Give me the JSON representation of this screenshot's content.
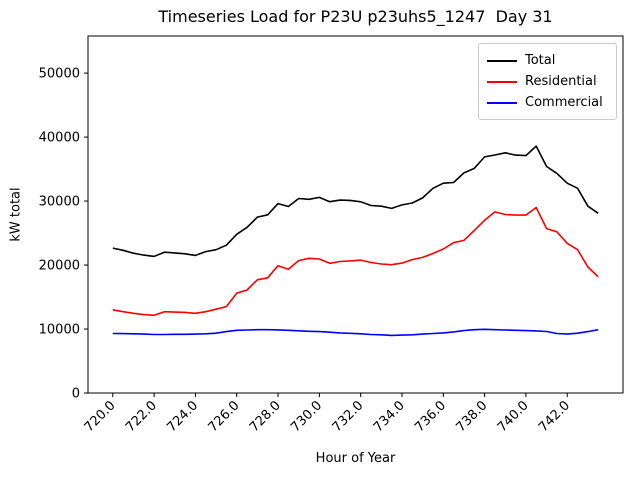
{
  "figure": {
    "title": "Timeseries Load for P23U p23uhs5_1247  Day 31"
  },
  "chart_data": {
    "type": "line",
    "title": "Timeseries Load for P23U p23uhs5_1247  Day 31",
    "xlabel": "Hour of Year",
    "ylabel": "kW total",
    "xlim": [
      718.8,
      744.7
    ],
    "ylim": [
      0,
      55800
    ],
    "grid": false,
    "legend_position": "upper right",
    "x_ticks": [
      720,
      722,
      724,
      726,
      728,
      730,
      732,
      734,
      736,
      738,
      740,
      742
    ],
    "x_tick_labels": [
      "720.0",
      "722.0",
      "724.0",
      "726.0",
      "728.0",
      "730.0",
      "732.0",
      "734.0",
      "736.0",
      "738.0",
      "740.0",
      "742.0"
    ],
    "x_tick_rotation": 45,
    "y_ticks": [
      0,
      10000,
      20000,
      30000,
      40000,
      50000
    ],
    "y_tick_labels": [
      "0",
      "10000",
      "20000",
      "30000",
      "40000",
      "50000"
    ],
    "x": [
      720.0,
      720.5,
      721.0,
      721.5,
      722.0,
      722.5,
      723.0,
      723.5,
      724.0,
      724.5,
      725.0,
      725.5,
      726.0,
      726.5,
      727.0,
      727.5,
      728.0,
      728.5,
      729.0,
      729.5,
      730.0,
      730.5,
      731.0,
      731.5,
      732.0,
      732.5,
      733.0,
      733.5,
      734.0,
      734.5,
      735.0,
      735.5,
      736.0,
      736.5,
      737.0,
      737.5,
      738.0,
      738.5,
      739.0,
      739.5,
      740.0,
      740.5,
      741.0,
      741.5,
      742.0,
      742.5,
      743.0,
      743.5
    ],
    "series": [
      {
        "name": "Total",
        "color": "#000000",
        "values": [
          22650,
          22300,
          21850,
          21550,
          21350,
          22000,
          21900,
          21750,
          21500,
          22100,
          22400,
          23100,
          24800,
          25900,
          27500,
          27850,
          29600,
          29150,
          30400,
          30270,
          30570,
          29900,
          30150,
          30100,
          29890,
          29300,
          29200,
          28860,
          29400,
          29700,
          30500,
          32000,
          32800,
          32900,
          34400,
          35100,
          36900,
          37200,
          37550,
          37190,
          37100,
          38590,
          35400,
          34330,
          32800,
          32000,
          29200,
          28080
        ]
      },
      {
        "name": "Residential",
        "color": "#ff0000",
        "values": [
          13000,
          12700,
          12450,
          12250,
          12150,
          12700,
          12650,
          12600,
          12450,
          12700,
          13100,
          13500,
          15600,
          16100,
          17700,
          18000,
          19900,
          19350,
          20700,
          21050,
          20940,
          20270,
          20550,
          20650,
          20780,
          20400,
          20160,
          20050,
          20300,
          20850,
          21200,
          21800,
          22500,
          23500,
          23850,
          25400,
          27000,
          28300,
          27900,
          27800,
          27800,
          29000,
          25700,
          25200,
          23400,
          22400,
          19700,
          18170
        ]
      },
      {
        "name": "Commercial",
        "color": "#0000ff",
        "values": [
          9300,
          9280,
          9250,
          9200,
          9150,
          9150,
          9170,
          9170,
          9200,
          9250,
          9350,
          9600,
          9800,
          9850,
          9900,
          9900,
          9870,
          9800,
          9720,
          9650,
          9600,
          9500,
          9400,
          9330,
          9250,
          9150,
          9100,
          9000,
          9050,
          9100,
          9200,
          9300,
          9400,
          9550,
          9750,
          9900,
          9950,
          9900,
          9850,
          9800,
          9750,
          9700,
          9620,
          9300,
          9200,
          9350,
          9600,
          9900
        ]
      }
    ]
  }
}
